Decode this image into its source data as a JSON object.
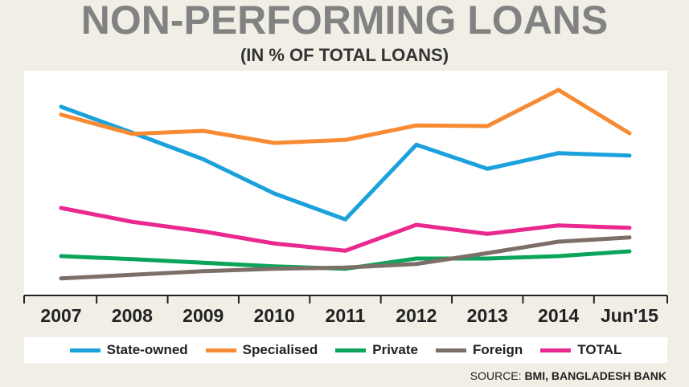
{
  "chart_data": {
    "type": "line",
    "title": "NON-PERFORMING LOANS",
    "subtitle": "(IN % OF TOTAL LOANS)",
    "xlabel": "",
    "ylabel": "",
    "categories": [
      "2007",
      "2008",
      "2009",
      "2010",
      "2011",
      "2012",
      "2013",
      "2014",
      "Jun'15"
    ],
    "series": [
      {
        "name": "State-owned",
        "color": "#1ba1dc",
        "values": [
          30.0,
          25.7,
          21.3,
          15.6,
          11.3,
          23.7,
          19.7,
          22.3,
          21.9
        ]
      },
      {
        "name": "Specialised",
        "color": "#f68b33",
        "values": [
          28.7,
          25.5,
          26.0,
          24.0,
          24.5,
          26.9,
          26.8,
          32.8,
          25.6
        ]
      },
      {
        "name": "Private",
        "color": "#0aa55a",
        "values": [
          5.2,
          4.7,
          4.1,
          3.5,
          3.1,
          4.8,
          4.8,
          5.2,
          6.0
        ]
      },
      {
        "name": "Foreign",
        "color": "#7d6f68",
        "values": [
          1.5,
          2.1,
          2.7,
          3.1,
          3.3,
          3.9,
          5.7,
          7.6,
          8.3
        ]
      },
      {
        "name": "TOTAL",
        "color": "#e9298f",
        "values": [
          13.2,
          10.9,
          9.3,
          7.3,
          6.1,
          10.4,
          8.9,
          10.3,
          9.9
        ]
      }
    ],
    "grid": false,
    "legend_placement": "bottom",
    "source_label": "SOURCE:",
    "source": "BMI, BANGLADESH BANK"
  }
}
